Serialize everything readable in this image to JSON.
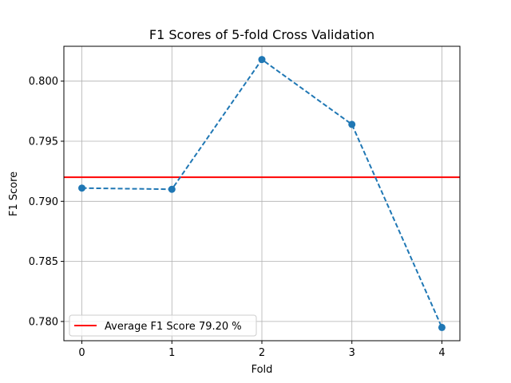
{
  "chart_data": {
    "type": "line",
    "title": "F1 Scores of 5-fold Cross Validation",
    "xlabel": "Fold",
    "ylabel": "F1 Score",
    "x": [
      0,
      1,
      2,
      3,
      4
    ],
    "xticks": [
      "0",
      "1",
      "2",
      "3",
      "4"
    ],
    "xlim": [
      -0.2,
      4.2
    ],
    "ylim": [
      0.7784,
      0.8029
    ],
    "yticks": [
      0.78,
      0.785,
      0.79,
      0.795,
      0.8
    ],
    "ytick_labels": [
      "0.780",
      "0.785",
      "0.790",
      "0.795",
      "0.800"
    ],
    "grid": true,
    "series": [
      {
        "values": [
          0.7911,
          0.791,
          0.8018,
          0.7964,
          0.7795
        ],
        "color": "#1f77b4",
        "linestyle": "dashed",
        "marker": "circle"
      }
    ],
    "reference_line": {
      "name": "Average F1 Score 79.20 %",
      "value": 0.792,
      "color": "#ff0000"
    },
    "legend": {
      "placement": "lower-left",
      "entries": [
        "Average F1 Score 79.20 %"
      ]
    }
  }
}
